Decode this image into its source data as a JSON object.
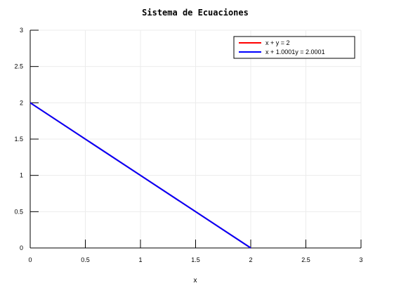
{
  "chart_data": {
    "type": "line",
    "title": "Sistema de Ecuaciones",
    "xlabel": "x",
    "ylabel": "",
    "xlim": [
      0,
      3
    ],
    "ylim": [
      0,
      3
    ],
    "x_ticks": [
      "0",
      "0.5",
      "1",
      "1.5",
      "2",
      "2.5",
      "3"
    ],
    "y_ticks": [
      "0",
      "0.5",
      "1",
      "1.5",
      "2",
      "2.5",
      "3"
    ],
    "grid": true,
    "legend_position": "top-right",
    "series": [
      {
        "name": "x + y = 2",
        "color": "#ff0000",
        "x": [
          0,
          2
        ],
        "y": [
          2,
          0
        ]
      },
      {
        "name": "x + 1.0001y = 2.0001",
        "color": "#0000ff",
        "x": [
          0,
          2
        ],
        "y": [
          2,
          0
        ]
      }
    ]
  }
}
